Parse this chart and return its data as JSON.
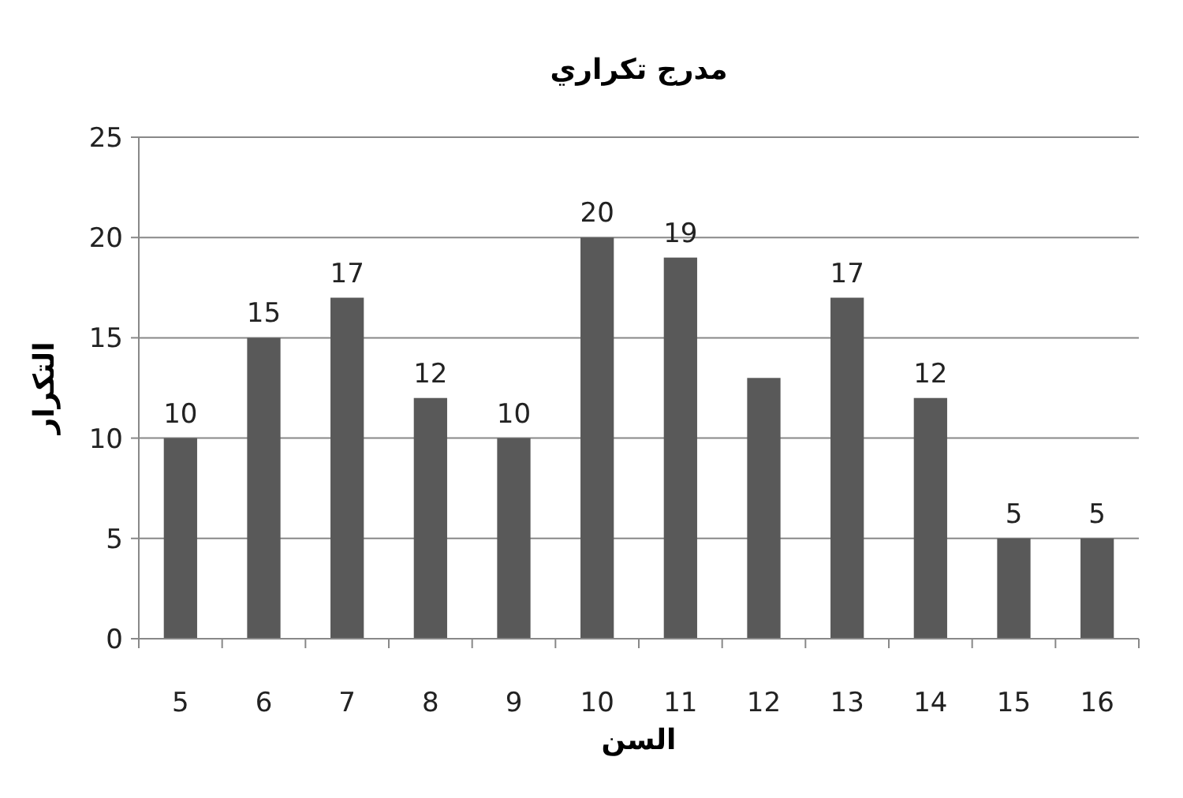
{
  "chart_data": {
    "type": "bar",
    "title": "مدرج تكراري",
    "xlabel": "السن",
    "ylabel": "التكرار",
    "categories": [
      "5",
      "6",
      "7",
      "8",
      "9",
      "10",
      "11",
      "12",
      "13",
      "14",
      "15",
      "16"
    ],
    "values": [
      10,
      15,
      17,
      12,
      10,
      20,
      19,
      13,
      17,
      12,
      5,
      5
    ],
    "value_labels": [
      "10",
      "15",
      "17",
      "12",
      "10",
      "20",
      "19",
      null,
      "17",
      "12",
      "5",
      "5"
    ],
    "color": "#595959",
    "ylim": [
      0,
      25
    ],
    "yticks": [
      0,
      5,
      10,
      15,
      20,
      25
    ],
    "grid": "y"
  }
}
